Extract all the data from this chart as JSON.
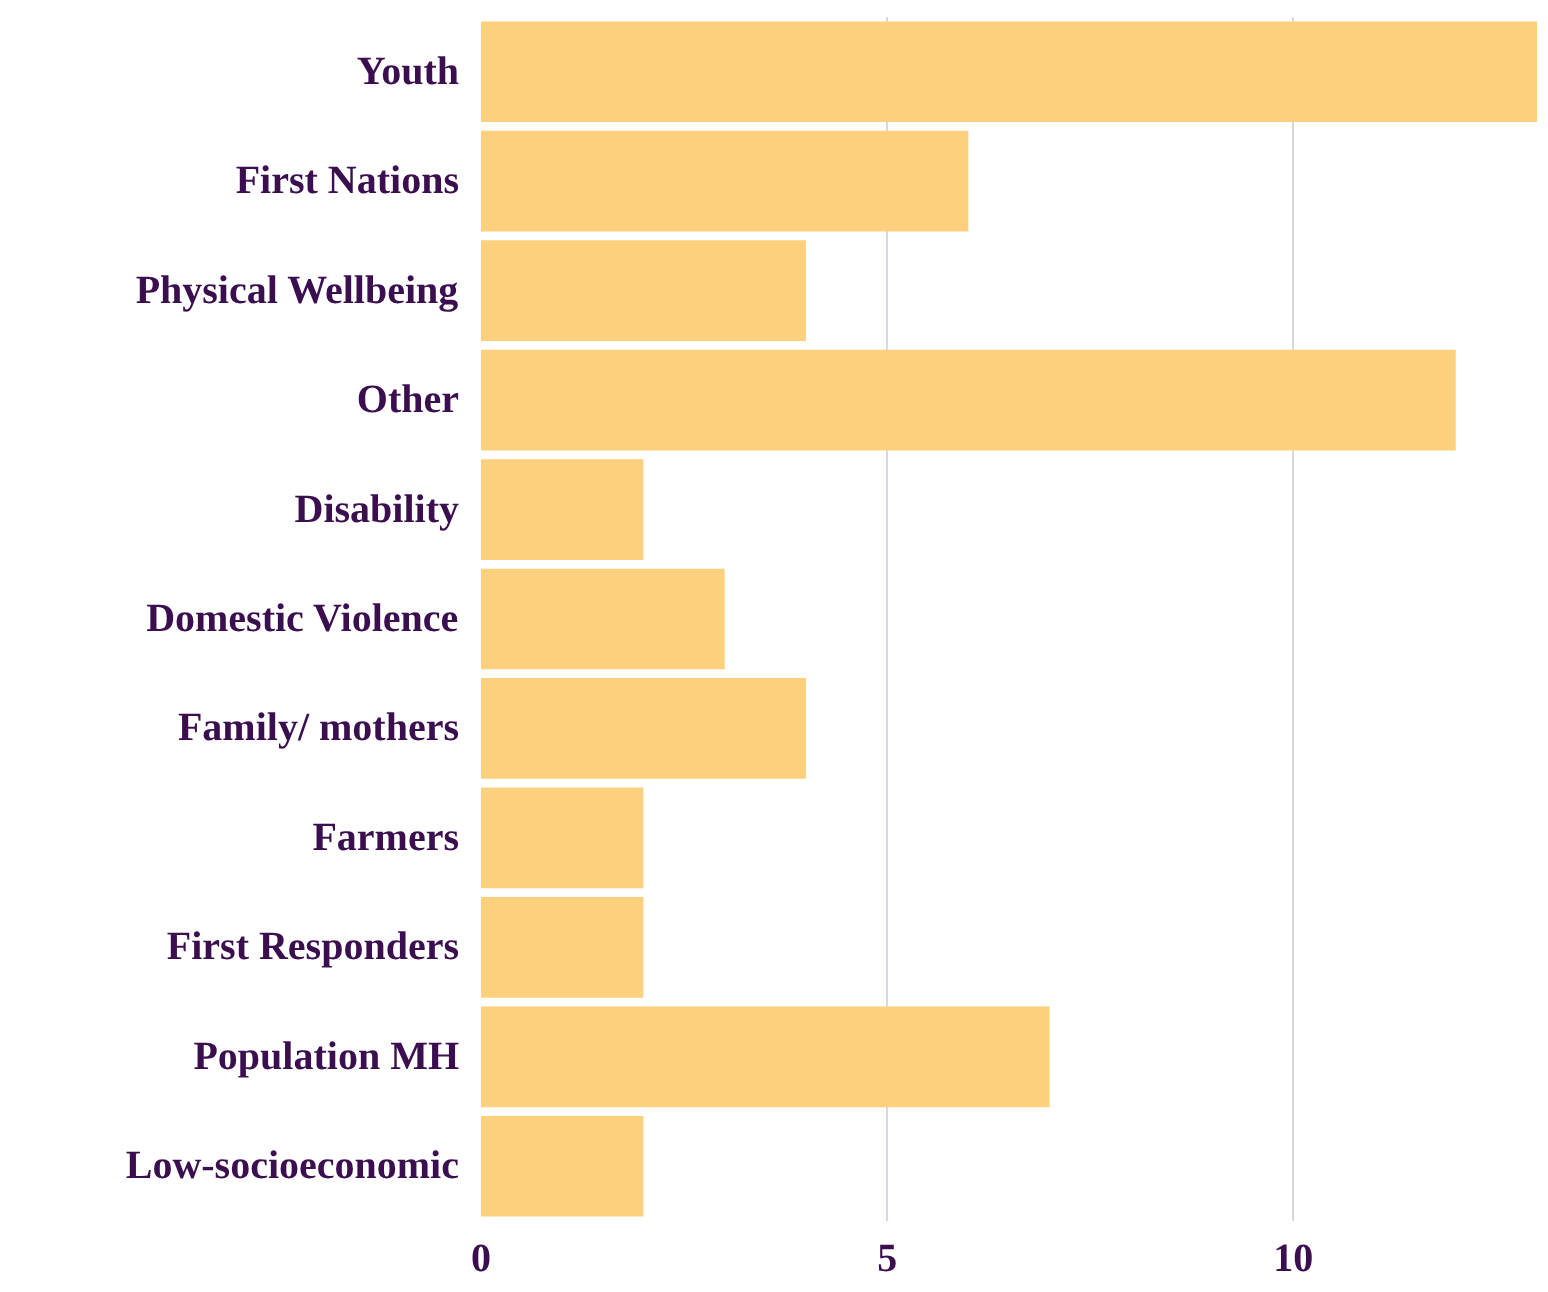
{
  "chart_data": {
    "type": "bar",
    "orientation": "horizontal",
    "categories": [
      "Youth",
      "First Nations",
      "Physical Wellbeing",
      "Other",
      "Disability",
      "Domestic Violence",
      "Family/ mothers",
      "Farmers",
      "First Responders",
      "Population MH",
      "Low-socioeconomic"
    ],
    "values": [
      13,
      6,
      4,
      12,
      2,
      3,
      4,
      2,
      2,
      7,
      2
    ],
    "color": "#fdd07e",
    "xlim": [
      0,
      13
    ],
    "xticks": [
      0,
      5,
      10
    ],
    "grid": "x"
  }
}
